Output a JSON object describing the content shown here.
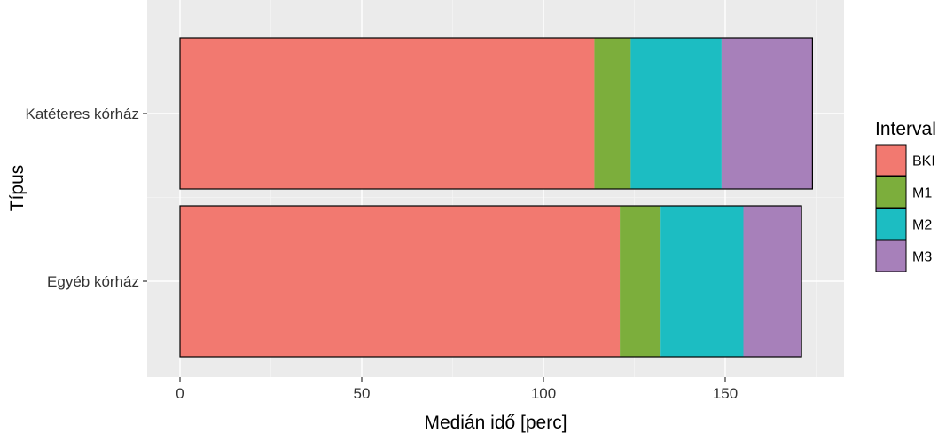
{
  "chart_data": {
    "type": "bar",
    "orientation": "horizontal",
    "stacked": true,
    "categories": [
      "Katéteres kórház",
      "Egyéb kórház"
    ],
    "series": [
      {
        "name": "BKI",
        "color": "#F27970",
        "values": [
          114,
          121
        ]
      },
      {
        "name": "M1",
        "color": "#7CAE3C",
        "values": [
          10,
          11
        ]
      },
      {
        "name": "M2",
        "color": "#1CBDC2",
        "values": [
          25,
          23
        ]
      },
      {
        "name": "M3",
        "color": "#A780BA",
        "values": [
          25,
          16
        ]
      }
    ],
    "xlabel": "Medián idő [perc]",
    "ylabel": "Típus",
    "xlim": [
      -9,
      184
    ],
    "xticks": [
      0,
      50,
      100,
      150
    ],
    "xtick_labels": [
      "0",
      "50",
      "100",
      "150"
    ],
    "legend": {
      "title": "Interval",
      "position": "right"
    },
    "grid": true,
    "panel_background": "#EBEBEB"
  }
}
